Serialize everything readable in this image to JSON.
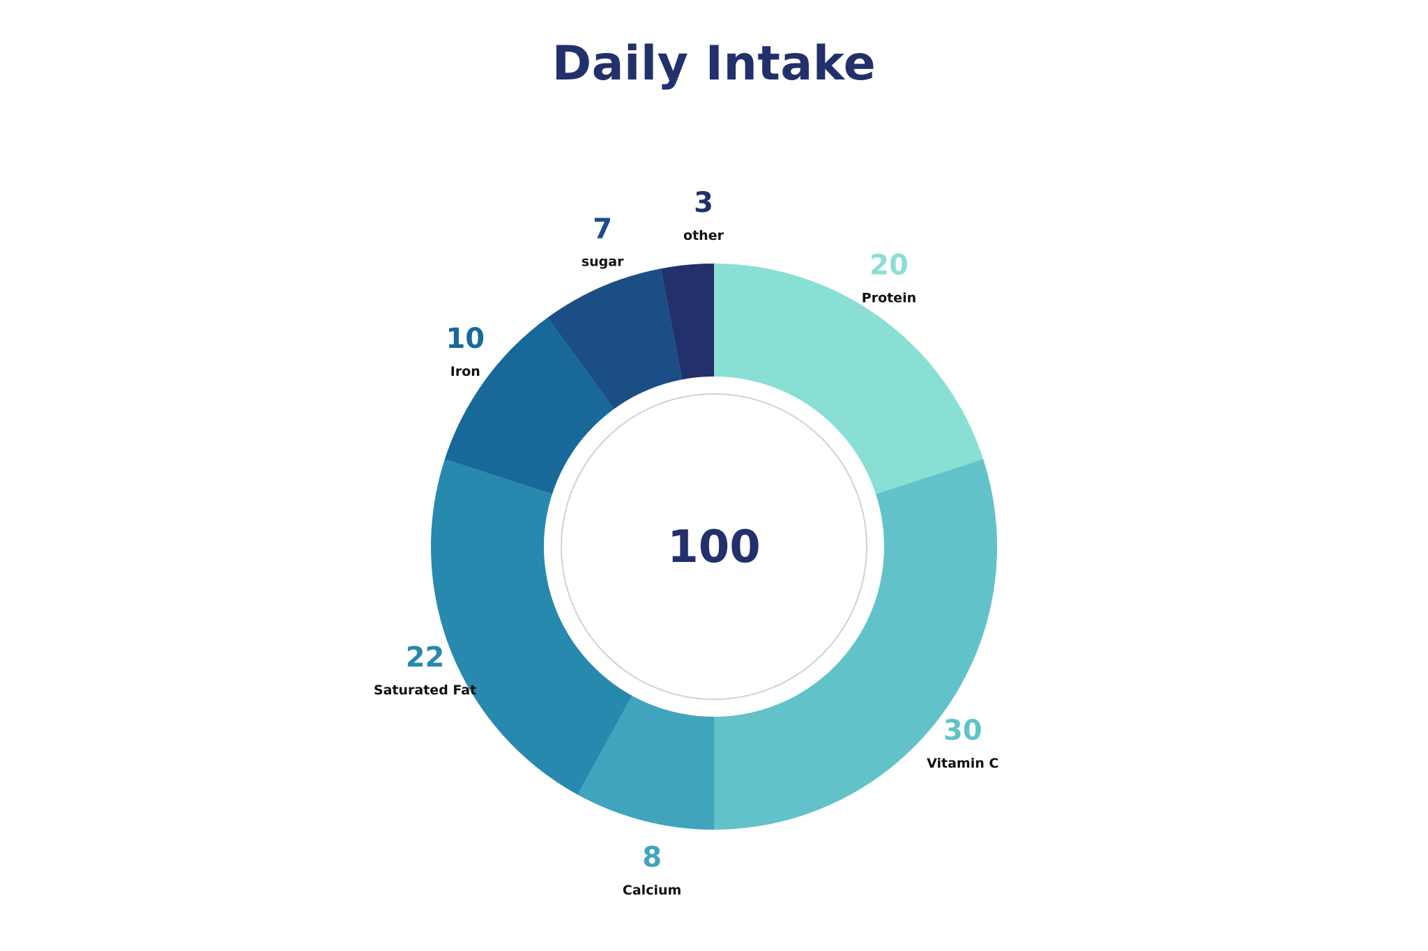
{
  "chart_data": {
    "type": "pie",
    "title": "Daily Intake",
    "center_label": "100",
    "hole": true,
    "legend": "none",
    "slices": [
      {
        "label": "Protein",
        "value": 20,
        "color": "#8adfd5"
      },
      {
        "label": "Vitamin C",
        "value": 30,
        "color": "#62c2c9"
      },
      {
        "label": "Calcium",
        "value": 8,
        "color": "#41a4bd"
      },
      {
        "label": "Saturated Fat",
        "value": 22,
        "color": "#2789ae"
      },
      {
        "label": "Iron",
        "value": 10,
        "color": "#18699a"
      },
      {
        "label": "sugar",
        "value": 7,
        "color": "#1c4e86"
      },
      {
        "label": "other",
        "value": 3,
        "color": "#22306b"
      }
    ]
  }
}
